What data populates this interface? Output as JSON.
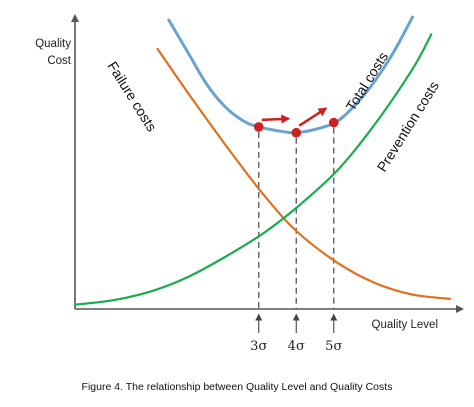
{
  "chart_data": {
    "type": "line",
    "title": "",
    "ylabel_line1": "Quality",
    "ylabel_line2": "Cost",
    "xlabel": "Quality Level",
    "caption": "Figure 4. The relationship between Quality Level and Quality Costs",
    "xlim": [
      0,
      10
    ],
    "ylim": [
      0,
      10
    ],
    "grid": false,
    "legend": "none",
    "series": [
      {
        "name": "Failure costs",
        "color": "#e07020",
        "x": [
          2.2,
          3.0,
          4.0,
          5.0,
          5.9,
          7.0,
          8.0,
          9.0,
          10.0
        ],
        "y": [
          9.0,
          7.5,
          5.7,
          4.0,
          2.7,
          1.6,
          0.9,
          0.5,
          0.35
        ]
      },
      {
        "name": "Prevention costs",
        "color": "#1aab50",
        "x": [
          0.0,
          1.0,
          2.0,
          3.0,
          4.0,
          5.0,
          5.9,
          7.0,
          8.0,
          9.0,
          9.5
        ],
        "y": [
          0.15,
          0.3,
          0.6,
          1.1,
          1.8,
          2.6,
          3.5,
          4.8,
          6.4,
          8.3,
          9.5
        ]
      },
      {
        "name": "Total costs",
        "color": "#6aa3d0",
        "x": [
          2.5,
          3.0,
          3.5,
          4.0,
          4.5,
          4.9,
          5.5,
          5.9,
          6.5,
          7.0,
          7.5,
          8.0,
          8.5,
          9.0
        ],
        "y": [
          10.0,
          8.9,
          7.8,
          7.0,
          6.5,
          6.3,
          6.15,
          6.1,
          6.25,
          6.5,
          7.1,
          7.9,
          8.9,
          10.1
        ]
      }
    ],
    "sigma_levels": [
      {
        "label": "3σ",
        "x": 4.9,
        "y": 6.3
      },
      {
        "label": "4σ",
        "x": 5.9,
        "y": 6.1
      },
      {
        "label": "5σ",
        "x": 6.9,
        "y": 6.45
      }
    ],
    "arrows_color": "#cc1f1f",
    "point_color": "#cc1f1f",
    "axis_color": "#555555"
  }
}
